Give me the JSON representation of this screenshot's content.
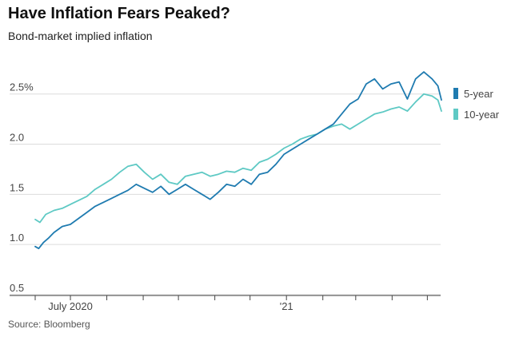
{
  "header": {
    "title": "Have Inflation Fears Peaked?",
    "subtitle": "Bond-market implied inflation"
  },
  "footer": {
    "source": "Source: Bloomberg"
  },
  "chart_data": {
    "type": "line",
    "title": "Have Inflation Fears Peaked?",
    "subtitle": "Bond-market implied inflation",
    "xlabel": "",
    "ylabel": "",
    "x_range": [
      "2020-06-01",
      "2021-05-13"
    ],
    "ylim": [
      0.5,
      2.8
    ],
    "y_ticks": [
      0.5,
      1.0,
      1.5,
      2.0,
      2.5
    ],
    "y_tick_labels": [
      "0.5",
      "1.0",
      "1.5",
      "2.0",
      "2.5%"
    ],
    "x_tick_labels": [
      {
        "date": "2020-07-01",
        "label": "July 2020"
      },
      {
        "date": "2021-01-01",
        "label": "'21"
      }
    ],
    "x_minor_ticks": [
      "2020-06-01",
      "2020-08-01",
      "2020-09-01",
      "2020-10-01",
      "2020-11-01",
      "2020-12-01",
      "2021-02-01",
      "2021-03-01",
      "2021-04-01",
      "2021-05-01"
    ],
    "grid": "horizontal",
    "legend_position": "right",
    "series": [
      {
        "name": "5-year",
        "color": "#1f7bb0",
        "points": [
          [
            "2020-06-01",
            0.98
          ],
          [
            "2020-06-04",
            0.96
          ],
          [
            "2020-06-08",
            1.02
          ],
          [
            "2020-06-12",
            1.06
          ],
          [
            "2020-06-17",
            1.12
          ],
          [
            "2020-06-24",
            1.18
          ],
          [
            "2020-07-01",
            1.2
          ],
          [
            "2020-07-08",
            1.26
          ],
          [
            "2020-07-15",
            1.32
          ],
          [
            "2020-07-22",
            1.38
          ],
          [
            "2020-07-29",
            1.42
          ],
          [
            "2020-08-05",
            1.46
          ],
          [
            "2020-08-12",
            1.5
          ],
          [
            "2020-08-19",
            1.54
          ],
          [
            "2020-08-26",
            1.6
          ],
          [
            "2020-09-02",
            1.56
          ],
          [
            "2020-09-09",
            1.52
          ],
          [
            "2020-09-16",
            1.58
          ],
          [
            "2020-09-23",
            1.5
          ],
          [
            "2020-09-30",
            1.55
          ],
          [
            "2020-10-07",
            1.6
          ],
          [
            "2020-10-14",
            1.55
          ],
          [
            "2020-10-21",
            1.5
          ],
          [
            "2020-10-28",
            1.45
          ],
          [
            "2020-11-04",
            1.52
          ],
          [
            "2020-11-11",
            1.6
          ],
          [
            "2020-11-18",
            1.58
          ],
          [
            "2020-11-25",
            1.65
          ],
          [
            "2020-12-02",
            1.6
          ],
          [
            "2020-12-09",
            1.7
          ],
          [
            "2020-12-16",
            1.72
          ],
          [
            "2020-12-23",
            1.8
          ],
          [
            "2020-12-30",
            1.9
          ],
          [
            "2021-01-06",
            1.95
          ],
          [
            "2021-01-13",
            2.0
          ],
          [
            "2021-01-20",
            2.05
          ],
          [
            "2021-01-27",
            2.1
          ],
          [
            "2021-02-03",
            2.15
          ],
          [
            "2021-02-10",
            2.2
          ],
          [
            "2021-02-17",
            2.3
          ],
          [
            "2021-02-24",
            2.4
          ],
          [
            "2021-03-03",
            2.45
          ],
          [
            "2021-03-10",
            2.6
          ],
          [
            "2021-03-17",
            2.65
          ],
          [
            "2021-03-24",
            2.55
          ],
          [
            "2021-03-31",
            2.6
          ],
          [
            "2021-04-07",
            2.62
          ],
          [
            "2021-04-14",
            2.45
          ],
          [
            "2021-04-21",
            2.65
          ],
          [
            "2021-04-28",
            2.72
          ],
          [
            "2021-05-05",
            2.65
          ],
          [
            "2021-05-10",
            2.58
          ],
          [
            "2021-05-13",
            2.44
          ]
        ]
      },
      {
        "name": "10-year",
        "color": "#5ec9c4",
        "points": [
          [
            "2020-06-01",
            1.25
          ],
          [
            "2020-06-05",
            1.22
          ],
          [
            "2020-06-10",
            1.3
          ],
          [
            "2020-06-17",
            1.34
          ],
          [
            "2020-06-24",
            1.36
          ],
          [
            "2020-07-01",
            1.4
          ],
          [
            "2020-07-08",
            1.44
          ],
          [
            "2020-07-15",
            1.48
          ],
          [
            "2020-07-22",
            1.55
          ],
          [
            "2020-07-29",
            1.6
          ],
          [
            "2020-08-05",
            1.65
          ],
          [
            "2020-08-12",
            1.72
          ],
          [
            "2020-08-19",
            1.78
          ],
          [
            "2020-08-26",
            1.8
          ],
          [
            "2020-09-02",
            1.72
          ],
          [
            "2020-09-09",
            1.65
          ],
          [
            "2020-09-16",
            1.7
          ],
          [
            "2020-09-23",
            1.62
          ],
          [
            "2020-09-30",
            1.6
          ],
          [
            "2020-10-07",
            1.68
          ],
          [
            "2020-10-14",
            1.7
          ],
          [
            "2020-10-21",
            1.72
          ],
          [
            "2020-10-28",
            1.68
          ],
          [
            "2020-11-04",
            1.7
          ],
          [
            "2020-11-11",
            1.73
          ],
          [
            "2020-11-18",
            1.72
          ],
          [
            "2020-11-25",
            1.76
          ],
          [
            "2020-12-02",
            1.74
          ],
          [
            "2020-12-09",
            1.82
          ],
          [
            "2020-12-16",
            1.85
          ],
          [
            "2020-12-23",
            1.9
          ],
          [
            "2020-12-30",
            1.96
          ],
          [
            "2021-01-06",
            2.0
          ],
          [
            "2021-01-13",
            2.05
          ],
          [
            "2021-01-20",
            2.08
          ],
          [
            "2021-01-27",
            2.1
          ],
          [
            "2021-02-03",
            2.15
          ],
          [
            "2021-02-10",
            2.18
          ],
          [
            "2021-02-17",
            2.2
          ],
          [
            "2021-02-24",
            2.15
          ],
          [
            "2021-03-03",
            2.2
          ],
          [
            "2021-03-10",
            2.25
          ],
          [
            "2021-03-17",
            2.3
          ],
          [
            "2021-03-24",
            2.32
          ],
          [
            "2021-03-31",
            2.35
          ],
          [
            "2021-04-07",
            2.37
          ],
          [
            "2021-04-14",
            2.33
          ],
          [
            "2021-04-21",
            2.42
          ],
          [
            "2021-04-28",
            2.5
          ],
          [
            "2021-05-05",
            2.48
          ],
          [
            "2021-05-10",
            2.44
          ],
          [
            "2021-05-13",
            2.33
          ]
        ]
      }
    ]
  }
}
